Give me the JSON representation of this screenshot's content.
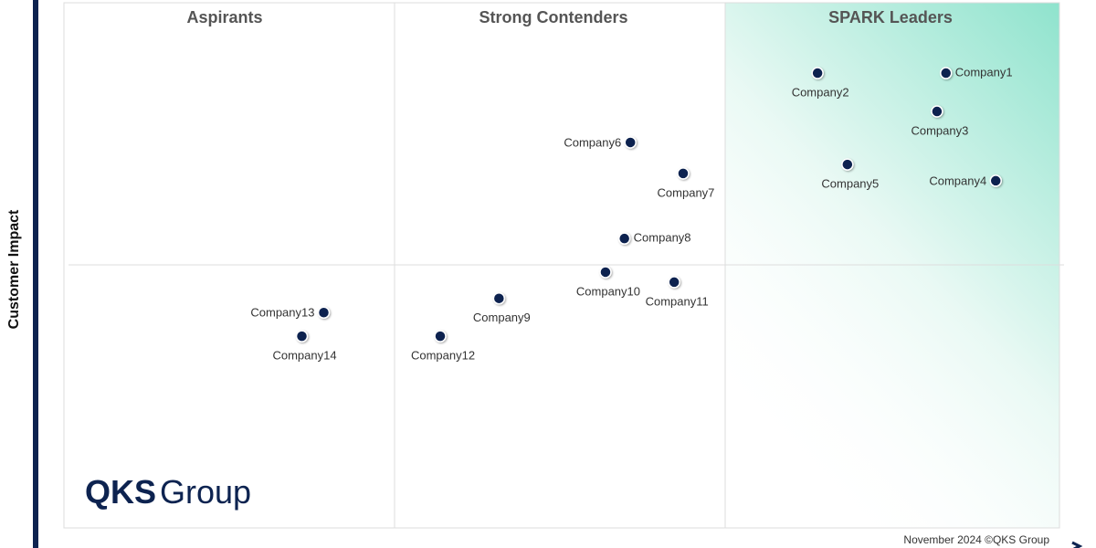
{
  "chart_data": {
    "type": "scatter",
    "quadrants": [
      "Aspirants",
      "Strong Contenders",
      "SPARK Leaders"
    ],
    "ylabel": "Customer Impact",
    "labels": [
      "Company1",
      "Company2",
      "Company3",
      "Company4",
      "Company5",
      "Company6",
      "Company7",
      "Company8",
      "Company9",
      "Company10",
      "Company11",
      "Company12",
      "Company13",
      "Company14"
    ],
    "x": [
      88.6,
      75.7,
      87.7,
      93.6,
      78.7,
      56.9,
      62.2,
      56.3,
      43.7,
      54.4,
      61.3,
      37.8,
      26.1,
      23.9
    ],
    "values": [
      86.6,
      86.6,
      79.3,
      66.1,
      69.2,
      73.4,
      67.5,
      55.1,
      43.7,
      48.7,
      46.8,
      36.5,
      41.0,
      36.5
    ],
    "color": "#0d2350",
    "xlim": [
      0,
      100
    ],
    "ylim": [
      0,
      100
    ],
    "footnote": "November 2024 ©QKS Group"
  },
  "logo": {
    "brand": "QKS",
    "name": "Group"
  }
}
